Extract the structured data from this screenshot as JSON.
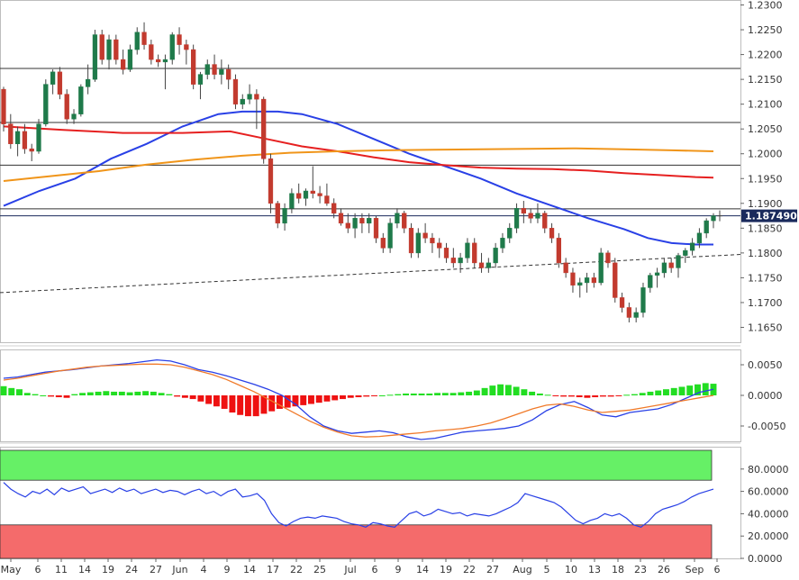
{
  "chart_data": [
    {
      "type": "candlestick",
      "name": "main",
      "ylim": [
        1.162,
        1.231
      ],
      "yticks": [
        "1.2300",
        "1.2250",
        "1.2200",
        "1.2150",
        "1.2100",
        "1.2050",
        "1.2000",
        "1.1950",
        "1.1900",
        "1.1850",
        "1.1800",
        "1.1750",
        "1.1700",
        "1.1650"
      ],
      "last_price_label": "1.187490",
      "last_price": 1.18749,
      "horizontal_levels": [
        1.2172,
        1.2063,
        1.1977,
        1.1889
      ],
      "trendline": {
        "from": [
          0,
          1.172
        ],
        "to": [
          119,
          1.1797
        ]
      },
      "candles": [
        [
          1.213,
          1.2135,
          1.2045,
          1.206
        ],
        [
          1.206,
          1.208,
          1.201,
          1.202
        ],
        [
          1.202,
          1.2055,
          1.1995,
          1.2045
        ],
        [
          1.2045,
          1.206,
          1.2,
          1.201
        ],
        [
          1.201,
          1.202,
          1.1985,
          1.2005
        ],
        [
          1.2005,
          1.207,
          1.2,
          1.206
        ],
        [
          1.206,
          1.215,
          1.2055,
          1.214
        ],
        [
          1.214,
          1.217,
          1.212,
          1.2165
        ],
        [
          1.2165,
          1.2175,
          1.211,
          1.212
        ],
        [
          1.212,
          1.213,
          1.206,
          1.207
        ],
        [
          1.207,
          1.209,
          1.206,
          1.208
        ],
        [
          1.208,
          1.214,
          1.2075,
          1.2135
        ],
        [
          1.2135,
          1.218,
          1.212,
          1.215
        ],
        [
          1.215,
          1.225,
          1.2145,
          1.224
        ],
        [
          1.224,
          1.225,
          1.218,
          1.219
        ],
        [
          1.219,
          1.224,
          1.217,
          1.223
        ],
        [
          1.223,
          1.224,
          1.218,
          1.219
        ],
        [
          1.219,
          1.221,
          1.216,
          1.217
        ],
        [
          1.217,
          1.222,
          1.2165,
          1.221
        ],
        [
          1.221,
          1.2255,
          1.22,
          1.2245
        ],
        [
          1.2245,
          1.2265,
          1.221,
          1.222
        ],
        [
          1.222,
          1.223,
          1.218,
          1.219
        ],
        [
          1.219,
          1.22,
          1.2175,
          1.2185
        ],
        [
          1.2185,
          1.22,
          1.213,
          1.219
        ],
        [
          1.219,
          1.2245,
          1.218,
          1.224
        ],
        [
          1.224,
          1.2255,
          1.22,
          1.222
        ],
        [
          1.222,
          1.223,
          1.218,
          1.221
        ],
        [
          1.221,
          1.222,
          1.213,
          1.214
        ],
        [
          1.214,
          1.2165,
          1.211,
          1.216
        ],
        [
          1.216,
          1.219,
          1.215,
          1.218
        ],
        [
          1.218,
          1.22,
          1.215,
          1.216
        ],
        [
          1.216,
          1.219,
          1.214,
          1.217
        ],
        [
          1.217,
          1.218,
          1.213,
          1.215
        ],
        [
          1.215,
          1.216,
          1.209,
          1.21
        ],
        [
          1.21,
          1.212,
          1.209,
          1.211
        ],
        [
          1.211,
          1.214,
          1.21,
          1.212
        ],
        [
          1.212,
          1.213,
          1.205,
          1.211
        ],
        [
          1.211,
          1.2115,
          1.198,
          1.199
        ],
        [
          1.199,
          1.2,
          1.188,
          1.19
        ],
        [
          1.19,
          1.1905,
          1.185,
          1.186
        ],
        [
          1.186,
          1.19,
          1.1845,
          1.189
        ],
        [
          1.189,
          1.193,
          1.188,
          1.192
        ],
        [
          1.192,
          1.194,
          1.19,
          1.191
        ],
        [
          1.191,
          1.193,
          1.1895,
          1.1925
        ],
        [
          1.1925,
          1.1975,
          1.191,
          1.192
        ],
        [
          1.192,
          1.1935,
          1.19,
          1.1915
        ],
        [
          1.1915,
          1.194,
          1.1895,
          1.19
        ],
        [
          1.19,
          1.191,
          1.187,
          1.188
        ],
        [
          1.188,
          1.189,
          1.1855,
          1.186
        ],
        [
          1.186,
          1.188,
          1.184,
          1.185
        ],
        [
          1.185,
          1.188,
          1.183,
          1.187
        ],
        [
          1.187,
          1.188,
          1.184,
          1.186
        ],
        [
          1.186,
          1.188,
          1.184,
          1.187
        ],
        [
          1.187,
          1.1875,
          1.182,
          1.183
        ],
        [
          1.183,
          1.184,
          1.18,
          1.181
        ],
        [
          1.181,
          1.187,
          1.18,
          1.186
        ],
        [
          1.186,
          1.189,
          1.185,
          1.188
        ],
        [
          1.188,
          1.1885,
          1.184,
          1.185
        ],
        [
          1.185,
          1.186,
          1.179,
          1.18
        ],
        [
          1.18,
          1.185,
          1.179,
          1.184
        ],
        [
          1.184,
          1.186,
          1.182,
          1.183
        ],
        [
          1.183,
          1.184,
          1.18,
          1.182
        ],
        [
          1.182,
          1.183,
          1.179,
          1.181
        ],
        [
          1.181,
          1.182,
          1.178,
          1.179
        ],
        [
          1.179,
          1.181,
          1.177,
          1.178
        ],
        [
          1.178,
          1.18,
          1.176,
          1.179
        ],
        [
          1.179,
          1.183,
          1.178,
          1.182
        ],
        [
          1.182,
          1.183,
          1.177,
          1.178
        ],
        [
          1.178,
          1.18,
          1.176,
          1.177
        ],
        [
          1.177,
          1.179,
          1.176,
          1.178
        ],
        [
          1.178,
          1.182,
          1.177,
          1.181
        ],
        [
          1.181,
          1.184,
          1.18,
          1.183
        ],
        [
          1.183,
          1.186,
          1.182,
          1.185
        ],
        [
          1.185,
          1.19,
          1.184,
          1.189
        ],
        [
          1.189,
          1.1905,
          1.186,
          1.188
        ],
        [
          1.188,
          1.189,
          1.186,
          1.187
        ],
        [
          1.187,
          1.19,
          1.186,
          1.188
        ],
        [
          1.188,
          1.1885,
          1.184,
          1.185
        ],
        [
          1.185,
          1.186,
          1.182,
          1.183
        ],
        [
          1.183,
          1.184,
          1.177,
          1.178
        ],
        [
          1.178,
          1.179,
          1.175,
          1.176
        ],
        [
          1.176,
          1.177,
          1.172,
          1.1735
        ],
        [
          1.1735,
          1.175,
          1.171,
          1.174
        ],
        [
          1.174,
          1.176,
          1.172,
          1.175
        ],
        [
          1.175,
          1.176,
          1.173,
          1.174
        ],
        [
          1.174,
          1.181,
          1.1735,
          1.18
        ],
        [
          1.18,
          1.1805,
          1.177,
          1.178
        ],
        [
          1.178,
          1.179,
          1.17,
          1.171
        ],
        [
          1.171,
          1.172,
          1.168,
          1.169
        ],
        [
          1.169,
          1.17,
          1.166,
          1.167
        ],
        [
          1.167,
          1.169,
          1.166,
          1.168
        ],
        [
          1.168,
          1.174,
          1.167,
          1.173
        ],
        [
          1.173,
          1.176,
          1.172,
          1.1755
        ],
        [
          1.1755,
          1.177,
          1.173,
          1.176
        ],
        [
          1.176,
          1.179,
          1.175,
          1.178
        ],
        [
          1.178,
          1.179,
          1.176,
          1.177
        ],
        [
          1.177,
          1.18,
          1.175,
          1.1795
        ],
        [
          1.1795,
          1.181,
          1.178,
          1.1805
        ],
        [
          1.1805,
          1.183,
          1.1795,
          1.182
        ],
        [
          1.182,
          1.185,
          1.181,
          1.184
        ],
        [
          1.184,
          1.187,
          1.183,
          1.1865
        ],
        [
          1.1865,
          1.188,
          1.185,
          1.1875
        ]
      ],
      "ma_series": [
        {
          "color": "#2940e6",
          "points": [
            [
              0,
              1.1895
            ],
            [
              6,
              1.1925
            ],
            [
              12,
              1.195
            ],
            [
              18,
              1.199
            ],
            [
              24,
              1.202
            ],
            [
              30,
              1.2055
            ],
            [
              36,
              1.208
            ],
            [
              40,
              1.2085
            ],
            [
              46,
              1.2085
            ],
            [
              50,
              1.208
            ],
            [
              56,
              1.206
            ],
            [
              62,
              1.203
            ],
            [
              68,
              1.2
            ],
            [
              74,
              1.1975
            ],
            [
              80,
              1.195
            ],
            [
              86,
              1.192
            ],
            [
              92,
              1.1895
            ],
            [
              98,
              1.187
            ],
            [
              104,
              1.1848
            ],
            [
              108,
              1.183
            ],
            [
              112,
              1.182
            ],
            [
              116,
              1.1817
            ],
            [
              119,
              1.1817
            ]
          ]
        },
        {
          "color": "#e62020",
          "points": [
            [
              0,
              1.2055
            ],
            [
              10,
              1.2048
            ],
            [
              20,
              1.2042
            ],
            [
              30,
              1.2042
            ],
            [
              38,
              1.2045
            ],
            [
              44,
              1.203
            ],
            [
              50,
              1.2015
            ],
            [
              56,
              1.2005
            ],
            [
              62,
              1.1993
            ],
            [
              68,
              1.1983
            ],
            [
              74,
              1.1977
            ],
            [
              80,
              1.1972
            ],
            [
              86,
              1.197
            ],
            [
              92,
              1.1969
            ],
            [
              98,
              1.1966
            ],
            [
              104,
              1.1961
            ],
            [
              110,
              1.1957
            ],
            [
              116,
              1.1953
            ],
            [
              119,
              1.1952
            ]
          ]
        },
        {
          "color": "#f0951a",
          "points": [
            [
              0,
              1.1945
            ],
            [
              8,
              1.1955
            ],
            [
              16,
              1.1965
            ],
            [
              24,
              1.1978
            ],
            [
              32,
              1.1988
            ],
            [
              40,
              1.1996
            ],
            [
              48,
              1.2002
            ],
            [
              56,
              1.2005
            ],
            [
              64,
              1.2007
            ],
            [
              72,
              1.2008
            ],
            [
              80,
              1.2009
            ],
            [
              88,
              1.201
            ],
            [
              96,
              1.2011
            ],
            [
              104,
              1.2009
            ],
            [
              112,
              1.2007
            ],
            [
              119,
              1.2005
            ]
          ]
        }
      ]
    },
    {
      "type": "macd",
      "name": "oscillator",
      "ylim": [
        -0.0075,
        0.0075
      ],
      "yticks": [
        "0.0050",
        "0.0000",
        "-0.0050"
      ],
      "macd_line": [
        0.0028,
        0.003,
        0.0034,
        0.0038,
        0.004,
        0.0042,
        0.0045,
        0.0048,
        0.005,
        0.0052,
        0.0055,
        0.0058,
        0.0056,
        0.005,
        0.0042,
        0.0038,
        0.0032,
        0.0025,
        0.0018,
        0.001,
        0.0,
        -0.0015,
        -0.0035,
        -0.005,
        -0.0058,
        -0.0062,
        -0.006,
        -0.0058,
        -0.0061,
        -0.0068,
        -0.0072,
        -0.007,
        -0.0065,
        -0.006,
        -0.0058,
        -0.0056,
        -0.0054,
        -0.005,
        -0.004,
        -0.0025,
        -0.0015,
        -0.001,
        -0.002,
        -0.0032,
        -0.0035,
        -0.0028,
        -0.0025,
        -0.0022,
        -0.0015,
        -0.0005,
        0.0005,
        0.001
      ],
      "signal_line": [
        0.0025,
        0.0028,
        0.0032,
        0.0036,
        0.004,
        0.0043,
        0.0046,
        0.0048,
        0.0049,
        0.005,
        0.0051,
        0.0051,
        0.005,
        0.0046,
        0.004,
        0.0034,
        0.0026,
        0.0016,
        0.0006,
        -0.0006,
        -0.0018,
        -0.003,
        -0.0042,
        -0.0052,
        -0.006,
        -0.0066,
        -0.0068,
        -0.0067,
        -0.0065,
        -0.0063,
        -0.0061,
        -0.0058,
        -0.0056,
        -0.0054,
        -0.005,
        -0.0045,
        -0.0038,
        -0.003,
        -0.0022,
        -0.0016,
        -0.0014,
        -0.0018,
        -0.0024,
        -0.0028,
        -0.0026,
        -0.0024,
        -0.002,
        -0.0016,
        -0.0012,
        -0.0008,
        -0.0004,
        0.0
      ],
      "histogram": [
        0.0015,
        0.0012,
        0.001,
        0.0004,
        0.0002,
        0.0,
        -0.0002,
        -0.0003,
        -0.0004,
        0.0002,
        0.0004,
        0.0005,
        0.0006,
        0.0007,
        0.0006,
        0.0006,
        0.0005,
        0.0006,
        0.0007,
        0.0006,
        0.0004,
        0.0002,
        -0.0002,
        -0.0004,
        -0.0006,
        -0.001,
        -0.0014,
        -0.0018,
        -0.0022,
        -0.0028,
        -0.0032,
        -0.0034,
        -0.0034,
        -0.003,
        -0.0026,
        -0.0022,
        -0.002,
        -0.0018,
        -0.0016,
        -0.0014,
        -0.0012,
        -0.001,
        -0.0008,
        -0.0006,
        -0.0004,
        -0.0003,
        -0.0002,
        -0.0001,
        0.0,
        0.0001,
        0.0002,
        0.0003,
        0.0003,
        0.0003,
        0.0003,
        0.0004,
        0.0004,
        0.0004,
        0.0005,
        0.0006,
        0.0008,
        0.0012,
        0.0016,
        0.0018,
        0.0017,
        0.0014,
        0.001,
        0.0006,
        0.0003,
        0.0001,
        -0.0001,
        -0.0002,
        -0.0002,
        -0.0003,
        -0.0004,
        -0.0003,
        -0.0002,
        -0.0002,
        -0.0001,
        0.0001,
        0.0002,
        0.0004,
        0.0006,
        0.0008,
        0.001,
        0.0012,
        0.0014,
        0.0016,
        0.0018,
        0.002,
        0.0019
      ]
    },
    {
      "type": "rsi",
      "name": "rsi",
      "ylim": [
        0,
        100
      ],
      "yticks": [
        "80.0000",
        "60.0000",
        "40.0000",
        "20.0000",
        "0.0000"
      ],
      "overbought_band": [
        70,
        100
      ],
      "oversold_band": [
        0,
        30
      ],
      "values": [
        68,
        62,
        58,
        55,
        60,
        58,
        62,
        57,
        63,
        60,
        62,
        64,
        58,
        60,
        62,
        59,
        63,
        60,
        62,
        58,
        60,
        62,
        59,
        61,
        60,
        57,
        60,
        62,
        58,
        60,
        56,
        60,
        62,
        55,
        56,
        58,
        52,
        40,
        32,
        29,
        33,
        36,
        37,
        36,
        38,
        37,
        36,
        33,
        31,
        30,
        28,
        32,
        31,
        29,
        28,
        34,
        40,
        42,
        38,
        40,
        44,
        42,
        40,
        41,
        38,
        40,
        39,
        38,
        40,
        43,
        46,
        50,
        58,
        56,
        54,
        52,
        50,
        46,
        40,
        34,
        31,
        34,
        36,
        40,
        38,
        40,
        36,
        30,
        28,
        33,
        40,
        44,
        46,
        48,
        51,
        55,
        58,
        60,
        62
      ]
    }
  ],
  "x_axis": {
    "labels": [
      "May",
      "6",
      "11",
      "14",
      "19",
      "24",
      "27",
      "Jun",
      "4",
      "9",
      "14",
      "17",
      "22",
      "25",
      "Jul",
      "6",
      "9",
      "14",
      "19",
      "22",
      "27",
      "Aug",
      "5",
      "10",
      "13",
      "18",
      "23",
      "26",
      "Sep",
      "6"
    ]
  }
}
